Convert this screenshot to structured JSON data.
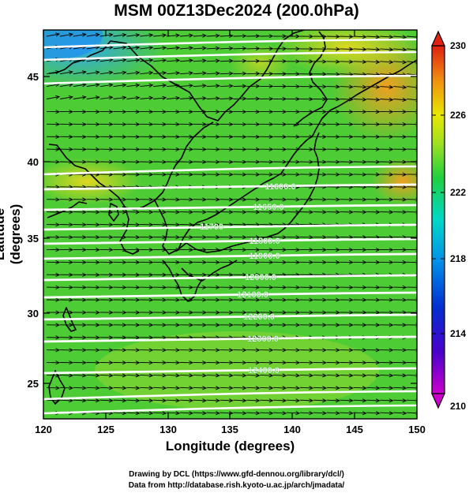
{
  "title": "MSM 00Z13Dec2024 (200.0hPa)",
  "x_axis": {
    "label": "Longitude (degrees)",
    "ticks": [
      "120",
      "125",
      "130",
      "135",
      "140",
      "145",
      "150"
    ]
  },
  "y_axis": {
    "label": "Latitude (degrees)",
    "ticks": [
      "25",
      "30",
      "35",
      "40",
      "45"
    ]
  },
  "colorbar": {
    "ticks": [
      "230",
      "226",
      "222",
      "218",
      "214",
      "210"
    ]
  },
  "contours": [
    {
      "label": "11600.0"
    },
    {
      "label": "11650.0"
    },
    {
      "label": "11700"
    },
    {
      "label": "11800.0"
    },
    {
      "label": "11900.0"
    },
    {
      "label": "12000.0"
    },
    {
      "label": "12100.0"
    },
    {
      "label": "12200.0"
    },
    {
      "label": "12300.0"
    },
    {
      "label": "12400.0"
    }
  ],
  "credits": {
    "line1": "Drawing by DCL (https://www.gfd-dennou.org/library/dcl/)",
    "line2": "Data from http://database.rish.kyoto-u.ac.jp/arch/jmadata/"
  },
  "colors": {
    "contour": "#ffffff",
    "vector": "#000000",
    "coast": "#000000"
  }
}
